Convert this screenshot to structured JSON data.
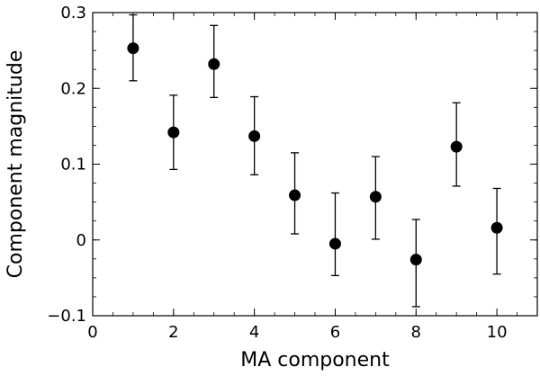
{
  "chart_data": {
    "type": "scatter",
    "title": "",
    "xlabel": "MA component",
    "ylabel": "Component magnitude",
    "xlim": [
      0,
      11
    ],
    "ylim": [
      -0.1,
      0.3
    ],
    "grid": false,
    "x_ticks": [
      0,
      2,
      4,
      6,
      8,
      10
    ],
    "x_tick_labels": [
      "0",
      "2",
      "4",
      "6",
      "8",
      "10"
    ],
    "x_minor_step": 0.5,
    "y_ticks": [
      -0.1,
      0,
      0.1,
      0.2,
      0.3
    ],
    "y_tick_labels": [
      "−0.1",
      "0",
      "0.1",
      "0.2",
      "0.3"
    ],
    "y_minor_step": 0.025,
    "marker_color": "#000000",
    "series": [
      {
        "x": [
          1,
          2,
          3,
          4,
          5,
          6,
          7,
          8,
          9,
          10
        ],
        "y": [
          0.253,
          0.142,
          0.232,
          0.137,
          0.059,
          -0.005,
          0.057,
          -0.026,
          0.123,
          0.016
        ],
        "err_low": [
          0.21,
          0.093,
          0.188,
          0.086,
          0.008,
          -0.047,
          0.001,
          -0.088,
          0.071,
          -0.045
        ],
        "err_high": [
          0.297,
          0.191,
          0.283,
          0.189,
          0.115,
          0.062,
          0.11,
          0.027,
          0.181,
          0.068
        ]
      }
    ]
  }
}
